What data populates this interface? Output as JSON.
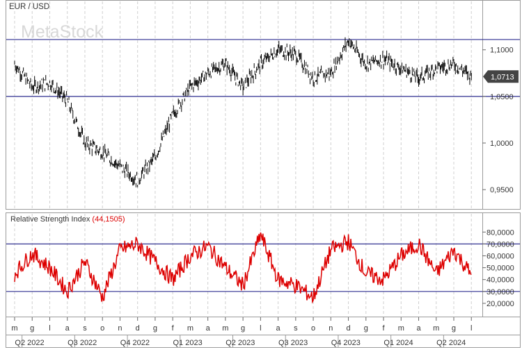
{
  "chart_data": [
    {
      "type": "candlestick",
      "title": "EUR / USD",
      "watermark": "MetaStock",
      "ylim": [
        0.93,
        1.14
      ],
      "yticks": [
        {
          "v": 1.1,
          "label": "1,1000"
        },
        {
          "v": 1.05,
          "label": "1,0500"
        },
        {
          "v": 1.0,
          "label": "1,0000"
        },
        {
          "v": 0.95,
          "label": "0,9500"
        }
      ],
      "hlines": [
        1.111,
        1.05
      ],
      "last_value": 1.0713,
      "last_label": "1,0713",
      "series_colors": {
        "line": "#000000",
        "hline": "#2e2e8f",
        "grid": "#cfcfcf"
      },
      "x": [
        "2022-05",
        "2022-06",
        "2022-07",
        "2022-08",
        "2022-09",
        "2022-10",
        "2022-11",
        "2022-12",
        "2023-01",
        "2023-02",
        "2023-03",
        "2023-04",
        "2023-05",
        "2023-06",
        "2023-07",
        "2023-08",
        "2023-09",
        "2023-10",
        "2023-11",
        "2023-12",
        "2024-01",
        "2024-02",
        "2024-03",
        "2024-04",
        "2024-05",
        "2024-06",
        "2024-07"
      ],
      "values": [
        1.085,
        1.06,
        1.065,
        1.045,
        1.0,
        0.99,
        0.975,
        0.96,
        0.985,
        1.03,
        1.06,
        1.075,
        1.085,
        1.06,
        1.085,
        1.1,
        1.095,
        1.07,
        1.075,
        1.11,
        1.085,
        1.09,
        1.08,
        1.07,
        1.08,
        1.085,
        1.0713
      ]
    },
    {
      "type": "line",
      "title": "Relative Strength Index",
      "value_label": "(44,1505)",
      "ylim": [
        10000,
        86000
      ],
      "yticks": [
        {
          "v": 80000,
          "label": "80,0000"
        },
        {
          "v": 70000,
          "label": "70,0000"
        },
        {
          "v": 60000,
          "label": "60,0000"
        },
        {
          "v": 50000,
          "label": "50,0000"
        },
        {
          "v": 40000,
          "label": "40,0000"
        },
        {
          "v": 30000,
          "label": "30,0000"
        },
        {
          "v": 20000,
          "label": "20,0000"
        }
      ],
      "hlines": [
        70000,
        30000
      ],
      "series_colors": {
        "line": "#dd0000",
        "hline": "#2e2e8f"
      },
      "x": [
        "2022-05",
        "2022-06",
        "2022-07",
        "2022-08",
        "2022-09",
        "2022-10",
        "2022-11",
        "2022-12",
        "2023-01",
        "2023-02",
        "2023-03",
        "2023-04",
        "2023-05",
        "2023-06",
        "2023-07",
        "2023-08",
        "2023-09",
        "2023-10",
        "2023-11",
        "2023-12",
        "2024-01",
        "2024-02",
        "2024-03",
        "2024-04",
        "2024-05",
        "2024-06",
        "2024-07"
      ],
      "values": [
        45000,
        62000,
        50000,
        30000,
        55000,
        25000,
        65000,
        70000,
        55000,
        40000,
        60000,
        68000,
        50000,
        35000,
        78000,
        40000,
        35000,
        25000,
        65000,
        72000,
        45000,
        40000,
        60000,
        70000,
        45000,
        65000,
        44150
      ]
    }
  ],
  "x_axis": {
    "months": [
      "m",
      "g",
      "l",
      "a",
      "s",
      "o",
      "n",
      "d",
      "g",
      "f",
      "m",
      "a",
      "m",
      "g",
      "l",
      "a",
      "s",
      "o",
      "n",
      "d",
      "g",
      "f",
      "m",
      "a",
      "m",
      "g",
      "l"
    ],
    "quarters": [
      "Q2 2022",
      "Q3 2022",
      "Q4 2022",
      "Q1 2023",
      "Q2 2023",
      "Q3 2023",
      "Q4 2023",
      "Q1 2024",
      "Q2 2024"
    ]
  }
}
